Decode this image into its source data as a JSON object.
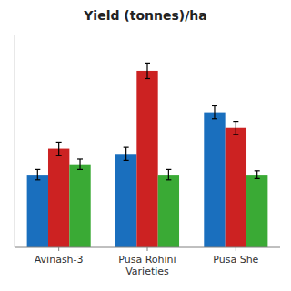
{
  "chart_data": {
    "type": "bar",
    "title": "Yield (tonnes)/ha",
    "categories": [
      "Avinash-3",
      "Pusa Rohini\nVarieties",
      "Pusa She"
    ],
    "series": [
      {
        "color": "#1a6fbe",
        "values": [
          28,
          36,
          52
        ],
        "errors": [
          2.0,
          2.5,
          2.5
        ]
      },
      {
        "color": "#cc2222",
        "values": [
          38,
          68,
          46
        ],
        "errors": [
          2.5,
          3.0,
          2.5
        ]
      },
      {
        "color": "#3aaa35",
        "values": [
          32,
          28,
          28
        ],
        "errors": [
          2.0,
          2.0,
          1.5
        ]
      }
    ],
    "ylim": [
      0,
      82
    ],
    "grid": false,
    "tick_labels": "x"
  }
}
